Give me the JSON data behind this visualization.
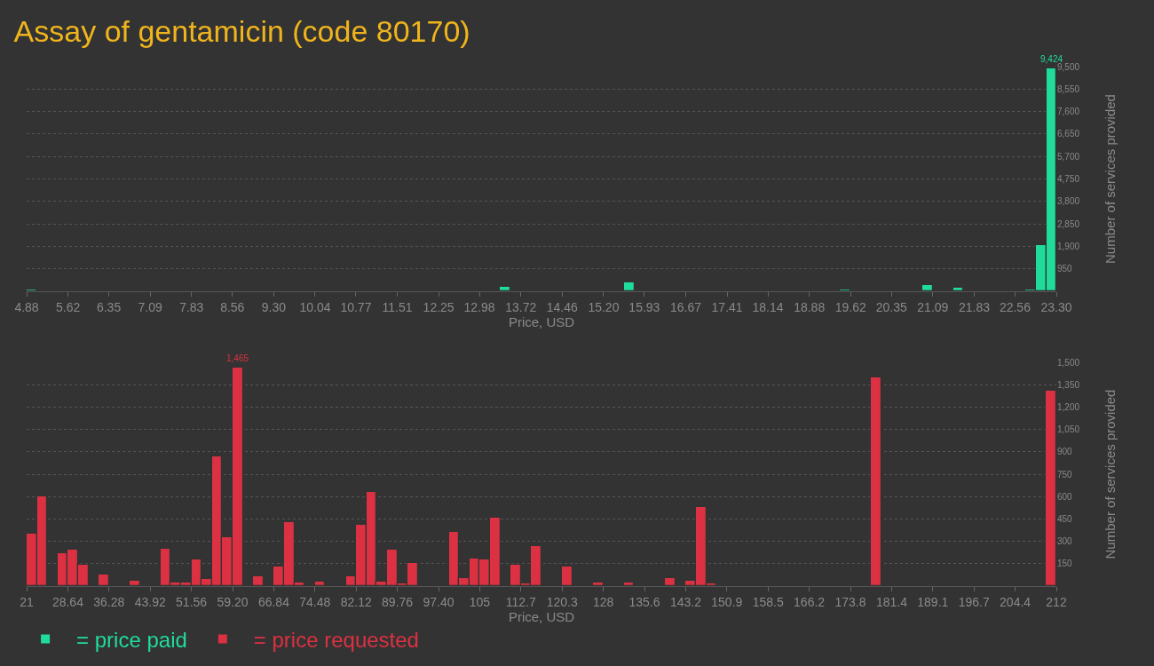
{
  "chart_data": [
    {
      "type": "histogram",
      "title": "Assay of gentamicin (code 80170)",
      "xlabel": "Price, USD",
      "ylabel": "Number of services provided",
      "bins": [
        4.88,
        5.06,
        13.35,
        13.54,
        15.56,
        15.75,
        19.43,
        19.62,
        20.91,
        21.09,
        21.46,
        21.64,
        21.83,
        22.01,
        22.75,
        22.93,
        23.12,
        23.3
      ],
      "series": [
        {
          "name": "= price paid",
          "color": "#1fdc9a",
          "values": [
            60,
            0,
            190,
            0,
            370,
            0,
            80,
            0,
            250,
            0,
            140,
            0,
            30,
            0,
            60,
            1950,
            9424
          ]
        }
      ],
      "xlim": [
        4.88,
        23.3
      ],
      "xticks": [
        {
          "value": 4.88,
          "label": "4.88"
        },
        {
          "value": 5.62,
          "label": "5.62"
        },
        {
          "value": 6.35,
          "label": "6.35"
        },
        {
          "value": 7.09,
          "label": "7.09"
        },
        {
          "value": 7.83,
          "label": "7.83"
        },
        {
          "value": 8.56,
          "label": "8.56"
        },
        {
          "value": 9.3,
          "label": "9.30"
        },
        {
          "value": 10.04,
          "label": "10.04"
        },
        {
          "value": 10.77,
          "label": "10.77"
        },
        {
          "value": 11.51,
          "label": "11.51"
        },
        {
          "value": 12.25,
          "label": "12.25"
        },
        {
          "value": 12.98,
          "label": "12.98"
        },
        {
          "value": 13.72,
          "label": "13.72"
        },
        {
          "value": 14.46,
          "label": "14.46"
        },
        {
          "value": 15.2,
          "label": "15.20"
        },
        {
          "value": 15.93,
          "label": "15.93"
        },
        {
          "value": 16.67,
          "label": "16.67"
        },
        {
          "value": 17.41,
          "label": "17.41"
        },
        {
          "value": 18.14,
          "label": "18.14"
        },
        {
          "value": 18.88,
          "label": "18.88"
        },
        {
          "value": 19.62,
          "label": "19.62"
        },
        {
          "value": 20.35,
          "label": "20.35"
        },
        {
          "value": 21.09,
          "label": "21.09"
        },
        {
          "value": 21.83,
          "label": "21.83"
        },
        {
          "value": 22.56,
          "label": "22.56"
        },
        {
          "value": 23.3,
          "label": "23.30"
        }
      ],
      "ylim": [
        0,
        9500
      ],
      "yticks": [
        950,
        {
          "value": 1900,
          "label": "1,900"
        },
        {
          "value": 2850,
          "label": "2,850"
        },
        {
          "value": 3800,
          "label": "3,800"
        },
        {
          "value": 4750,
          "label": "4,750"
        },
        {
          "value": 5700,
          "label": "5,700"
        },
        {
          "value": 6650,
          "label": "6,650"
        },
        {
          "value": 7600,
          "label": "7,600"
        },
        {
          "value": 8550,
          "label": "8,550"
        },
        {
          "value": 9500,
          "label": "9,500"
        }
      ],
      "grid": "y",
      "annotations": [
        {
          "text": "9,424",
          "x": 23.21,
          "y": 9424
        }
      ]
    },
    {
      "type": "histogram",
      "xlabel": "Price, USD",
      "ylabel": "Number of services provided",
      "bins": [
        21,
        22.91,
        24.82,
        26.73,
        28.64,
        30.55,
        32.46,
        34.37,
        36.28,
        38.19,
        40.1,
        42.01,
        43.92,
        45.83,
        47.74,
        49.65,
        51.56,
        53.47,
        55.38,
        57.29,
        59.2,
        61.11,
        63.02,
        64.93,
        66.84,
        68.75,
        70.66,
        72.57,
        74.48,
        76.39,
        78.3,
        80.21,
        82.12,
        84.03,
        85.94,
        87.85,
        89.76,
        91.67,
        93.58,
        95.49,
        97.4,
        99.31,
        101.22,
        103.13,
        105.04,
        106.95,
        108.86,
        110.77,
        112.68,
        114.59,
        116.5,
        118.41,
        120.32,
        122.23,
        124.14,
        126.05,
        127.96,
        129.87,
        131.78,
        133.69,
        135.6,
        137.51,
        139.42,
        141.33,
        143.24,
        145.15,
        147.06,
        148.97,
        150.88,
        152.79,
        154.7,
        156.61,
        158.52,
        160.43,
        162.34,
        164.25,
        166.16,
        168.07,
        169.98,
        171.89,
        173.8,
        175.71,
        177.62,
        179.53,
        181.44,
        183.35,
        185.26,
        187.17,
        189.08,
        190.99,
        192.9,
        194.81,
        196.72,
        198.63,
        200.54,
        202.45,
        204.36,
        206.27,
        208.18,
        210.09,
        212
      ],
      "series": [
        {
          "name": "= price requested",
          "color": "#dc3142",
          "values": [
            350,
            600,
            0,
            220,
            245,
            140,
            0,
            80,
            0,
            0,
            35,
            0,
            0,
            250,
            25,
            25,
            180,
            50,
            870,
            330,
            1465,
            0,
            65,
            0,
            130,
            430,
            25,
            0,
            30,
            0,
            0,
            65,
            410,
            630,
            30,
            245,
            20,
            155,
            0,
            0,
            0,
            365,
            55,
            185,
            180,
            460,
            0,
            145,
            20,
            270,
            0,
            0,
            130,
            0,
            0,
            25,
            0,
            0,
            25,
            0,
            0,
            0,
            55,
            0,
            35,
            530,
            20,
            0,
            0,
            0,
            0,
            0,
            0,
            0,
            0,
            0,
            0,
            0,
            0,
            0,
            0,
            0,
            1400,
            0,
            0,
            0,
            0,
            0,
            0,
            0,
            0,
            0,
            0,
            0,
            0,
            0,
            0,
            0,
            0,
            1310
          ]
        }
      ],
      "xlim": [
        21,
        212
      ],
      "xticks": [
        {
          "value": 21,
          "label": "21"
        },
        {
          "value": 28.64,
          "label": "28.64"
        },
        {
          "value": 36.28,
          "label": "36.28"
        },
        {
          "value": 43.92,
          "label": "43.92"
        },
        {
          "value": 51.56,
          "label": "51.56"
        },
        {
          "value": 59.2,
          "label": "59.20"
        },
        {
          "value": 66.84,
          "label": "66.84"
        },
        {
          "value": 74.48,
          "label": "74.48"
        },
        {
          "value": 82.12,
          "label": "82.12"
        },
        {
          "value": 89.76,
          "label": "89.76"
        },
        {
          "value": 97.4,
          "label": "97.40"
        },
        {
          "value": 105.04,
          "label": "105"
        },
        {
          "value": 112.68,
          "label": "112.7"
        },
        {
          "value": 120.32,
          "label": "120.3"
        },
        {
          "value": 127.96,
          "label": "128"
        },
        {
          "value": 135.6,
          "label": "135.6"
        },
        {
          "value": 143.24,
          "label": "143.2"
        },
        {
          "value": 150.88,
          "label": "150.9"
        },
        {
          "value": 158.52,
          "label": "158.5"
        },
        {
          "value": 166.16,
          "label": "166.2"
        },
        {
          "value": 173.8,
          "label": "173.8"
        },
        {
          "value": 181.44,
          "label": "181.4"
        },
        {
          "value": 189.08,
          "label": "189.1"
        },
        {
          "value": 196.72,
          "label": "196.7"
        },
        {
          "value": 204.36,
          "label": "204.4"
        },
        {
          "value": 212,
          "label": "212"
        }
      ],
      "ylim": [
        0,
        1500
      ],
      "yticks": [
        150,
        300,
        450,
        600,
        750,
        900,
        {
          "value": 1050,
          "label": "1,050"
        },
        {
          "value": 1200,
          "label": "1,200"
        },
        {
          "value": 1350,
          "label": "1,350"
        },
        {
          "value": 1500,
          "label": "1,500"
        }
      ],
      "grid": "y",
      "legend": "bottom left",
      "annotations": [
        {
          "text": "1,465",
          "x": 60.16,
          "y": 1465
        }
      ]
    }
  ]
}
